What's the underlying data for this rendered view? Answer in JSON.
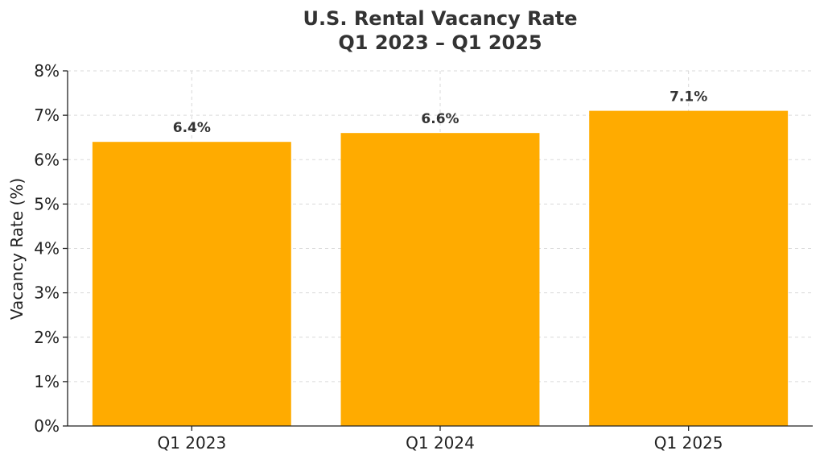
{
  "chart_data": {
    "type": "bar",
    "title_lines": [
      "U.S. Rental Vacancy Rate",
      "Q1 2023 – Q1 2025"
    ],
    "categories": [
      "Q1 2023",
      "Q1 2024",
      "Q1 2025"
    ],
    "values": [
      6.4,
      6.6,
      7.1
    ],
    "data_labels": [
      "6.4%",
      "6.6%",
      "7.1%"
    ],
    "xlabel": "",
    "ylabel": "Vacancy Rate (%)",
    "ylim": [
      0,
      8
    ],
    "yticks": [
      0,
      1,
      2,
      3,
      4,
      5,
      6,
      7,
      8
    ],
    "ytick_labels": [
      "0%",
      "1%",
      "2%",
      "3%",
      "4%",
      "5%",
      "6%",
      "7%",
      "8%"
    ],
    "grid": true,
    "bar_color": "#ffab00"
  }
}
